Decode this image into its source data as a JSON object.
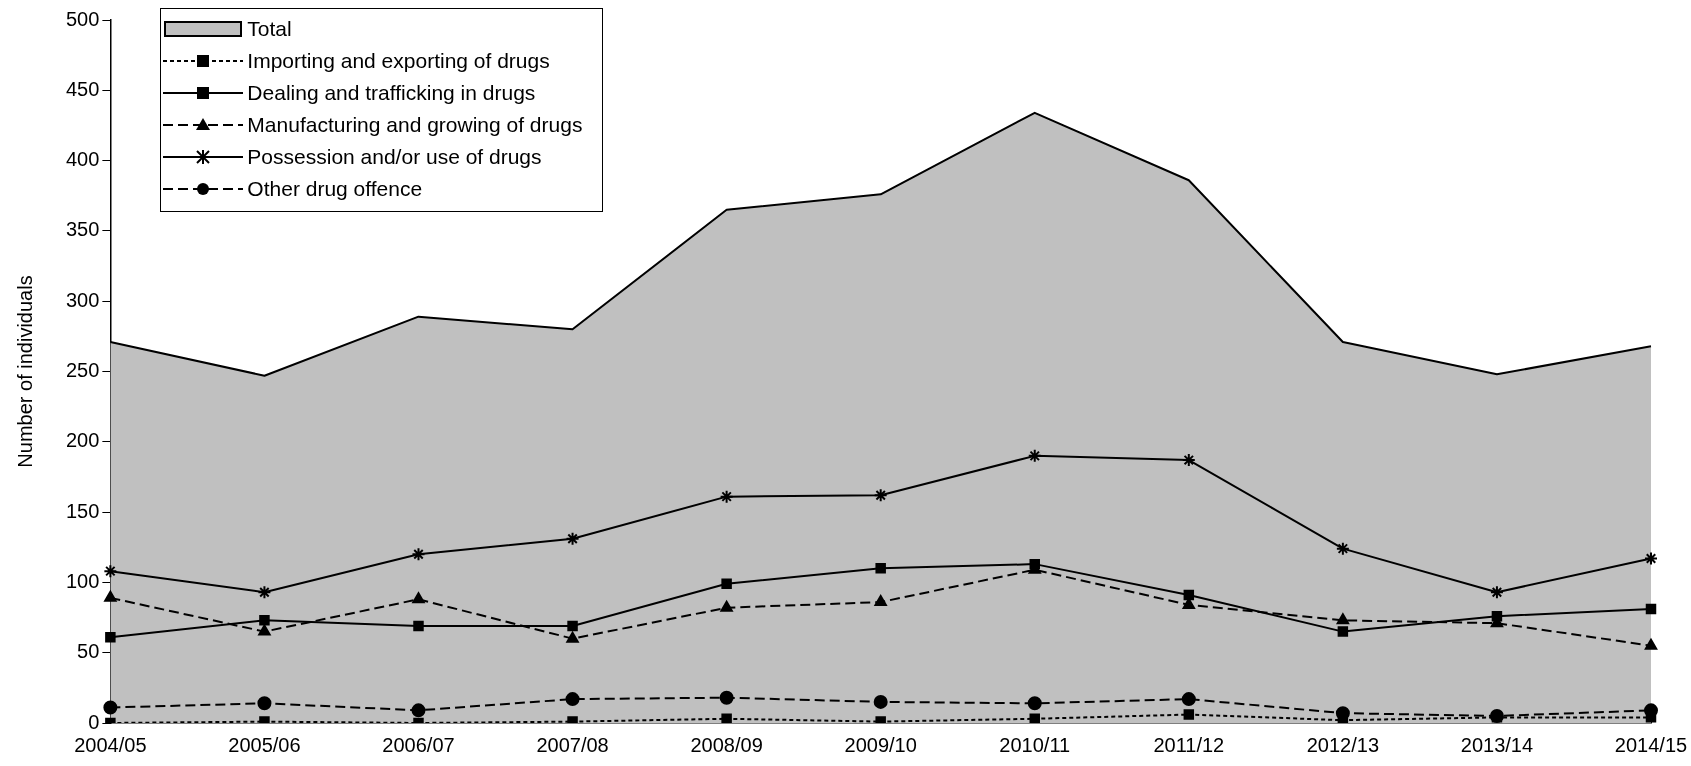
{
  "chart_data": {
    "type": "line",
    "ylabel": "Number of individuals",
    "categories": [
      "2004/05",
      "2005/06",
      "2006/07",
      "2007/08",
      "2008/09",
      "2009/10",
      "2010/11",
      "2011/12",
      "2012/13",
      "2013/14",
      "2014/15"
    ],
    "ylim": [
      0,
      500
    ],
    "yticks": [
      0,
      50,
      100,
      150,
      200,
      250,
      300,
      350,
      400,
      450,
      500
    ],
    "grid": false,
    "legend": "top left",
    "series": [
      {
        "name": "Total",
        "type": "area",
        "color": "#c0c0c0",
        "values": [
          271,
          247,
          289,
          280,
          365,
          376,
          434,
          386,
          271,
          248,
          268
        ]
      },
      {
        "name": "Importing and exporting of drugs",
        "color": "#000000",
        "marker": "square",
        "line_style": "dotted",
        "values": [
          0,
          1,
          0,
          1,
          3,
          1,
          3,
          6,
          2,
          4,
          4
        ]
      },
      {
        "name": "Dealing and trafficking in drugs",
        "color": "#000000",
        "marker": "square",
        "line_style": "solid",
        "values": [
          61,
          73,
          69,
          69,
          99,
          110,
          113,
          91,
          65,
          76,
          81
        ]
      },
      {
        "name": "Manufacturing and growing of drugs",
        "color": "#000000",
        "marker": "triangle",
        "line_style": "dashed",
        "values": [
          89,
          65,
          88,
          60,
          82,
          86,
          109,
          84,
          73,
          71,
          55
        ]
      },
      {
        "name": "Possession and/or use of drugs",
        "color": "#000000",
        "marker": "cross",
        "line_style": "solid",
        "values": [
          108,
          93,
          120,
          131,
          161,
          162,
          190,
          187,
          124,
          93,
          117
        ]
      },
      {
        "name": "Other drug offence",
        "color": "#000000",
        "marker": "circle",
        "line_style": "dashed",
        "values": [
          11,
          14,
          9,
          17,
          18,
          15,
          14,
          17,
          7,
          5,
          9
        ]
      }
    ]
  }
}
